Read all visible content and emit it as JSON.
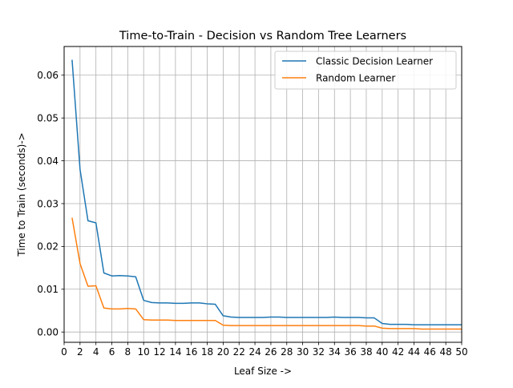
{
  "chart_data": {
    "type": "line",
    "title": "Time-to-Train -  Decision vs Random Tree Learners",
    "xlabel": "Leaf Size ->",
    "ylabel": "Time to Train (seconds)->",
    "xlim": [
      0,
      50
    ],
    "ylim": [
      -0.0024,
      0.0667
    ],
    "grid": true,
    "legend_position": "top-right",
    "x_ticks": [
      "0",
      "2",
      "4",
      "6",
      "8",
      "10",
      "12",
      "14",
      "16",
      "18",
      "20",
      "22",
      "24",
      "26",
      "28",
      "30",
      "32",
      "34",
      "36",
      "38",
      "40",
      "42",
      "44",
      "46",
      "48",
      "50"
    ],
    "y_ticks": [
      "0.00",
      "0.01",
      "0.02",
      "0.03",
      "0.04",
      "0.05",
      "0.06"
    ],
    "x": [
      1,
      2,
      3,
      4,
      5,
      6,
      7,
      8,
      9,
      10,
      11,
      12,
      13,
      14,
      15,
      16,
      17,
      18,
      19,
      20,
      21,
      22,
      23,
      24,
      25,
      26,
      27,
      28,
      29,
      30,
      31,
      32,
      33,
      34,
      35,
      36,
      37,
      38,
      39,
      40,
      41,
      42,
      43,
      44,
      45,
      46,
      47,
      48,
      49,
      50
    ],
    "series": [
      {
        "name": "Classic Decision Learner",
        "color": "#1f77b4",
        "values": [
          0.0636,
          0.038,
          0.026,
          0.0255,
          0.0138,
          0.0131,
          0.0132,
          0.0131,
          0.0129,
          0.0074,
          0.0069,
          0.0068,
          0.0068,
          0.0067,
          0.0067,
          0.0068,
          0.0068,
          0.0066,
          0.0065,
          0.0038,
          0.0035,
          0.0034,
          0.0034,
          0.0034,
          0.0034,
          0.0035,
          0.0035,
          0.0034,
          0.0034,
          0.0034,
          0.0034,
          0.0034,
          0.0034,
          0.0035,
          0.0034,
          0.0034,
          0.0034,
          0.0033,
          0.0033,
          0.002,
          0.0018,
          0.0018,
          0.0018,
          0.0017,
          0.0017,
          0.0017,
          0.0017,
          0.0017,
          0.0017,
          0.0017
        ]
      },
      {
        "name": "Random Learner",
        "color": "#ff7f0e",
        "values": [
          0.0267,
          0.016,
          0.0107,
          0.0108,
          0.0056,
          0.0054,
          0.0054,
          0.0055,
          0.0054,
          0.0029,
          0.0028,
          0.0028,
          0.0028,
          0.0027,
          0.0027,
          0.0027,
          0.0027,
          0.0027,
          0.0027,
          0.0016,
          0.0015,
          0.0015,
          0.0015,
          0.0015,
          0.0015,
          0.0015,
          0.0015,
          0.0015,
          0.0015,
          0.0015,
          0.0015,
          0.0015,
          0.0015,
          0.0015,
          0.0015,
          0.0015,
          0.0015,
          0.0014,
          0.0014,
          0.0009,
          0.0008,
          0.0008,
          0.0008,
          0.0008,
          0.0007,
          0.0007,
          0.0007,
          0.0007,
          0.0007,
          0.0007
        ]
      }
    ]
  }
}
